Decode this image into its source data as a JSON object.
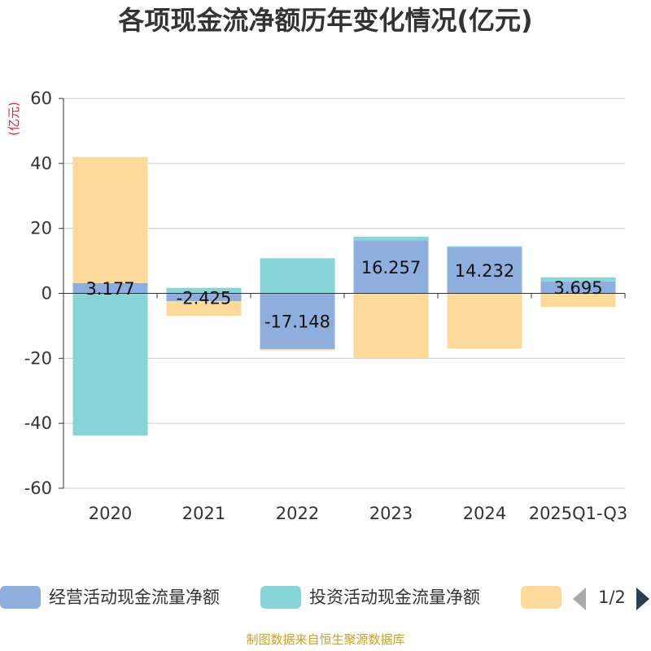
{
  "chart_data": {
    "type": "bar",
    "stacked": true,
    "title": "各项现金流净额历年变化情况(亿元)",
    "unit_label": "(亿元)",
    "categories": [
      "2020",
      "2021",
      "2022",
      "2023",
      "2024",
      "2025Q1-Q3"
    ],
    "ylim": [
      -60,
      60
    ],
    "yticks": [
      60,
      40,
      20,
      0,
      -20,
      -40,
      -60
    ],
    "grid": true,
    "series": [
      {
        "name": "经营活动现金流量净额",
        "color": "#8eaedd",
        "values": [
          3.177,
          -2.425,
          -17.148,
          16.257,
          14.232,
          3.695
        ],
        "labels": [
          "3.177",
          "-2.425",
          "-17.148",
          "16.257",
          "14.232",
          "3.695"
        ]
      },
      {
        "name": "投资活动现金流量净额",
        "color": "#88d5d8",
        "values": [
          -43.8,
          1.7,
          10.8,
          1.2,
          0.3,
          1.2
        ]
      },
      {
        "name": "",
        "color": "#fdd99a",
        "values": [
          38.8,
          -4.5,
          -0.4,
          -20.0,
          -17.0,
          -4.2
        ]
      }
    ],
    "legend": {
      "position": "bottom",
      "page": "1/2"
    },
    "source": "制图数据来自恒生聚源数据库"
  }
}
